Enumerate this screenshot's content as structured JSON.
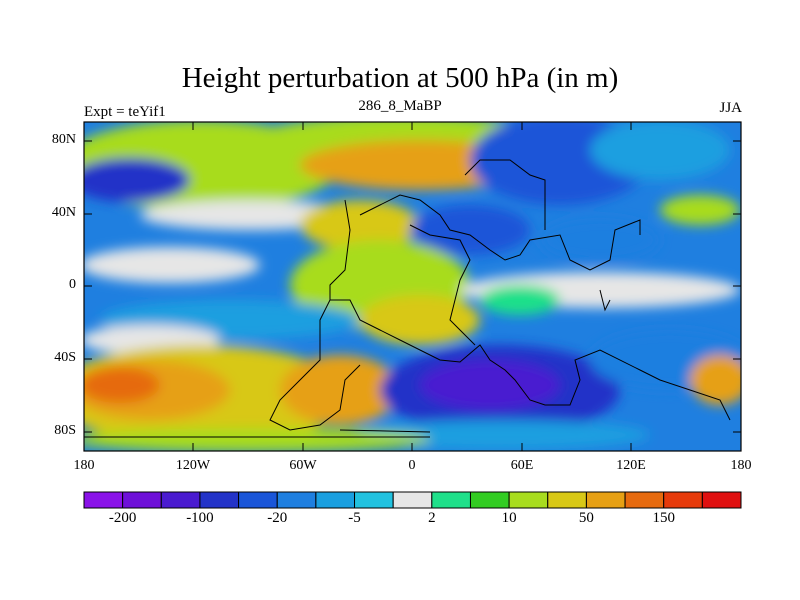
{
  "title": "Height perturbation at 500 hPa (in m)",
  "left_label": "Expt = teYif1",
  "center_label": "286_8_MaBP",
  "right_label": "JJA",
  "y_ticks": [
    "80N",
    "40N",
    "0",
    "40S",
    "80S"
  ],
  "x_ticks": [
    "180",
    "120W",
    "60W",
    "0",
    "60E",
    "120E",
    "180"
  ],
  "colorbar": {
    "colors": [
      "#8a12e8",
      "#6e10d8",
      "#4a1bd0",
      "#2333c8",
      "#1a55d8",
      "#1f7fe0",
      "#1a9fe0",
      "#22c2e0",
      "#e6e6e6",
      "#1fe08a",
      "#32cc22",
      "#a8dc1e",
      "#d8c816",
      "#e6a014",
      "#e66a0e",
      "#e63a0a",
      "#e01010"
    ],
    "labels": [
      "-200",
      "-100",
      "-20",
      "-5",
      "2",
      "10",
      "50",
      "150"
    ]
  },
  "map_data": {
    "region": "global",
    "lon_range": [
      -180,
      180
    ],
    "lat_range": [
      -90,
      90
    ],
    "variable": "500 hPa geopotential height perturbation"
  }
}
